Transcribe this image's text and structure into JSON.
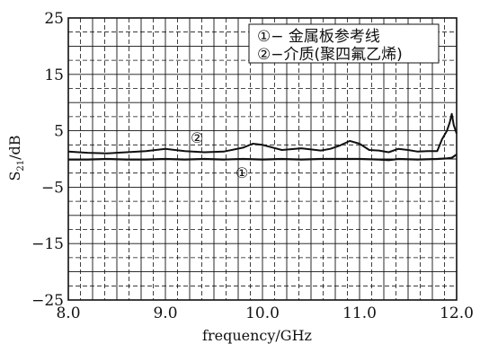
{
  "chart_data": {
    "type": "line",
    "title": "",
    "xlabel": "frequency/GHz",
    "ylabel_base": "S",
    "ylabel_sub": "21",
    "ylabel_rest": "/dB",
    "xlim": [
      8.0,
      12.0
    ],
    "ylim": [
      -25,
      25
    ],
    "x_ticks": [
      8.0,
      9.0,
      10.0,
      11.0,
      12.0
    ],
    "x_tick_labels": [
      "8.0",
      "9.0",
      "10.0",
      "11.0",
      "12.0"
    ],
    "y_ticks": [
      -25,
      -15,
      -5,
      5,
      15,
      25
    ],
    "y_tick_labels": [
      "−25",
      "−15",
      "−5",
      "5",
      "15",
      "25"
    ],
    "grid": true,
    "legend_placement": "top-right",
    "legend": [
      {
        "marker": "①",
        "text": "− 金属板参考线"
      },
      {
        "marker": "②",
        "text": "−介质(聚四氟乙烯)"
      }
    ],
    "series": [
      {
        "id": "metal-plate-reference",
        "annotation": "①",
        "x": [
          8.0,
          8.2,
          8.4,
          8.6,
          8.8,
          9.0,
          9.2,
          9.4,
          9.6,
          9.8,
          10.0,
          10.2,
          10.4,
          10.6,
          10.8,
          11.0,
          11.2,
          11.3,
          11.4,
          11.6,
          11.8,
          11.9,
          11.95,
          12.0
        ],
        "y": [
          -0.1,
          -0.1,
          0.0,
          -0.1,
          -0.1,
          0.0,
          -0.1,
          0.0,
          -0.1,
          0.0,
          -0.1,
          0.0,
          -0.1,
          0.0,
          0.0,
          0.0,
          -0.1,
          -0.2,
          0.0,
          -0.1,
          0.0,
          0.1,
          0.2,
          0.8
        ]
      },
      {
        "id": "ptfe-dielectric",
        "annotation": "②",
        "x": [
          8.0,
          8.2,
          8.4,
          8.6,
          8.8,
          9.0,
          9.2,
          9.4,
          9.6,
          9.8,
          9.9,
          10.0,
          10.2,
          10.4,
          10.6,
          10.7,
          10.8,
          10.9,
          11.0,
          11.1,
          11.2,
          11.3,
          11.4,
          11.5,
          11.6,
          11.7,
          11.8,
          11.85,
          11.9,
          11.93,
          11.95,
          11.97,
          12.0
        ],
        "y": [
          1.3,
          1.1,
          1.0,
          1.2,
          1.4,
          1.8,
          1.4,
          1.2,
          1.3,
          2.0,
          2.7,
          2.5,
          1.6,
          1.9,
          1.5,
          1.8,
          2.4,
          3.2,
          2.7,
          1.6,
          1.5,
          1.2,
          1.8,
          1.6,
          1.3,
          1.4,
          1.4,
          3.5,
          5.0,
          6.5,
          8.0,
          6.0,
          4.5
        ]
      }
    ]
  }
}
